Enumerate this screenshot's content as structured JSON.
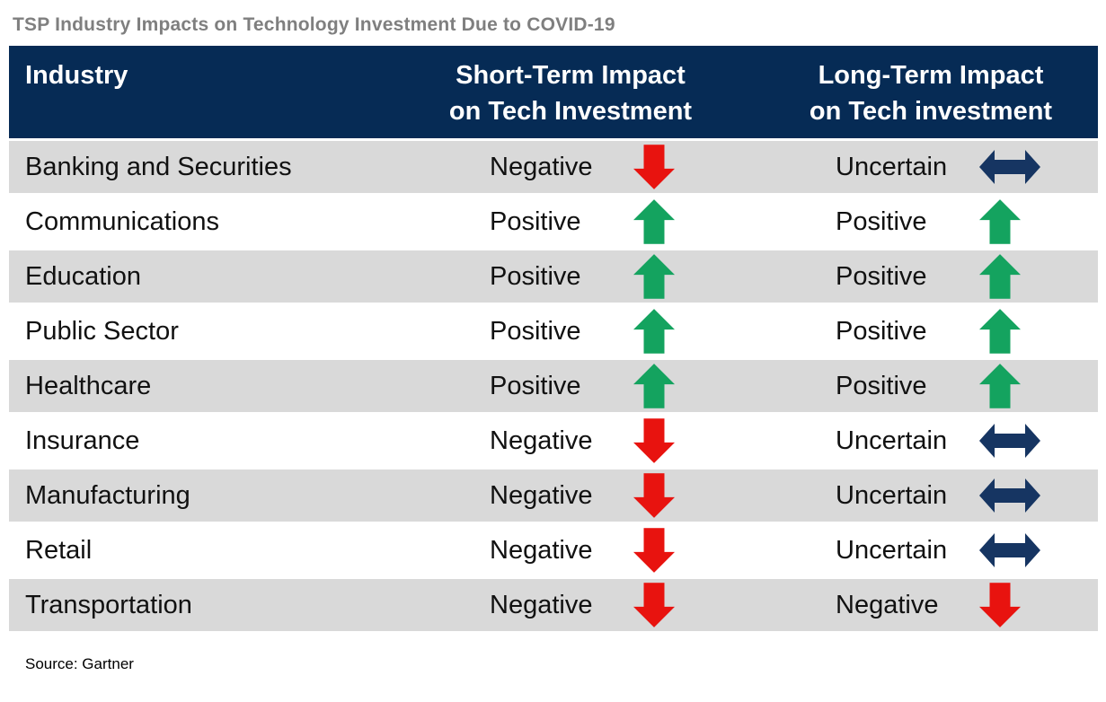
{
  "title": "TSP Industry Impacts on Technology Investment Due to COVID-19",
  "source": "Source: Gartner",
  "table": {
    "columns": [
      {
        "label": "Industry"
      },
      {
        "label": "Short-Term Impact\non Tech Investment"
      },
      {
        "label": "Long-Term Impact\non Tech investment"
      }
    ],
    "rows": [
      {
        "industry": "Banking and Securities",
        "short": {
          "label": "Negative",
          "direction": "down"
        },
        "long": {
          "label": "Uncertain",
          "direction": "both"
        }
      },
      {
        "industry": "Communications",
        "short": {
          "label": "Positive",
          "direction": "up"
        },
        "long": {
          "label": "Positive",
          "direction": "up"
        }
      },
      {
        "industry": "Education",
        "short": {
          "label": "Positive",
          "direction": "up"
        },
        "long": {
          "label": "Positive",
          "direction": "up"
        }
      },
      {
        "industry": "Public Sector",
        "short": {
          "label": "Positive",
          "direction": "up"
        },
        "long": {
          "label": "Positive",
          "direction": "up"
        }
      },
      {
        "industry": "Healthcare",
        "short": {
          "label": "Positive",
          "direction": "up"
        },
        "long": {
          "label": "Positive",
          "direction": "up"
        }
      },
      {
        "industry": "Insurance",
        "short": {
          "label": "Negative",
          "direction": "down"
        },
        "long": {
          "label": "Uncertain",
          "direction": "both"
        }
      },
      {
        "industry": "Manufacturing",
        "short": {
          "label": "Negative",
          "direction": "down"
        },
        "long": {
          "label": "Uncertain",
          "direction": "both"
        }
      },
      {
        "industry": "Retail",
        "short": {
          "label": "Negative",
          "direction": "down"
        },
        "long": {
          "label": "Uncertain",
          "direction": "both"
        }
      },
      {
        "industry": "Transportation",
        "short": {
          "label": "Negative",
          "direction": "down"
        },
        "long": {
          "label": "Negative",
          "direction": "down"
        }
      }
    ]
  },
  "icons": {
    "down": "down-arrow-icon",
    "up": "up-arrow-icon",
    "both": "left-right-arrow-icon"
  },
  "colors": {
    "header_bg": "#062b55",
    "row_alt_bg": "#d9d9d9",
    "positive_green": "#14a35f",
    "negative_red": "#e8130f",
    "uncertain_navy": "#163562",
    "title_gray": "#7f7f7f"
  },
  "chart_data": {
    "type": "table",
    "title": "TSP Industry Impacts on Technology Investment Due to COVID-19",
    "columns": [
      "Industry",
      "Short-Term Impact on Tech Investment",
      "Long-Term Impact on Tech investment"
    ],
    "rows": [
      [
        "Banking and Securities",
        "Negative (down)",
        "Uncertain (left-right)"
      ],
      [
        "Communications",
        "Positive (up)",
        "Positive (up)"
      ],
      [
        "Education",
        "Positive (up)",
        "Positive (up)"
      ],
      [
        "Public Sector",
        "Positive (up)",
        "Positive (up)"
      ],
      [
        "Healthcare",
        "Positive (up)",
        "Positive (up)"
      ],
      [
        "Insurance",
        "Negative (down)",
        "Uncertain (left-right)"
      ],
      [
        "Manufacturing",
        "Negative (down)",
        "Uncertain (left-right)"
      ],
      [
        "Retail",
        "Negative (down)",
        "Uncertain (left-right)"
      ],
      [
        "Transportation",
        "Negative (down)",
        "Negative (down)"
      ]
    ],
    "source": "Source: Gartner",
    "layout": {
      "alternating_row_shading": true,
      "header_style": "navy-bar-white-text"
    }
  }
}
